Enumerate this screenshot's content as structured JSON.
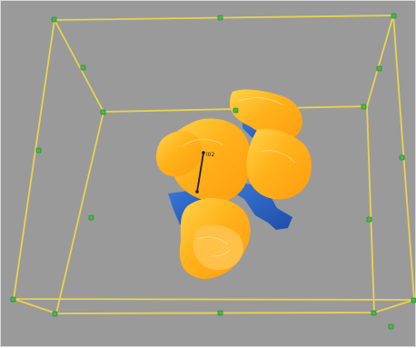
{
  "viewport": {
    "background": "#9a9a9a",
    "box_color": "#e8d44c",
    "handle_color": "#48b84a",
    "surface_primary": "#ffb21a",
    "surface_secondary": "#2b67c8",
    "measurement": {
      "label": "l02"
    }
  }
}
